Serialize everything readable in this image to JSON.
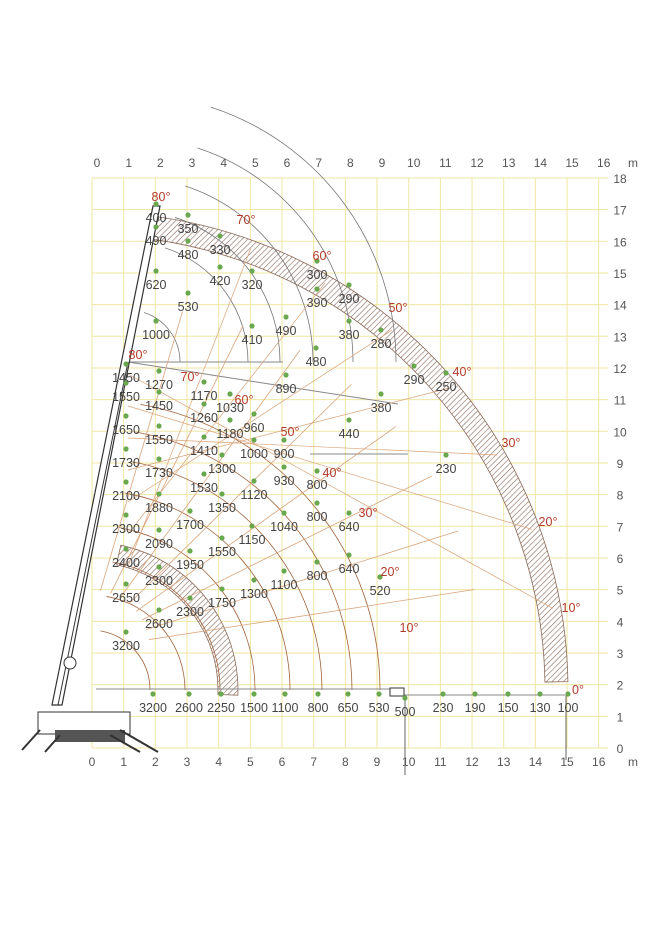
{
  "unit": "m",
  "x_axis_ticks": [
    "0",
    "1",
    "2",
    "3",
    "4",
    "5",
    "6",
    "7",
    "8",
    "9",
    "10",
    "11",
    "12",
    "13",
    "14",
    "15",
    "16"
  ],
  "y_axis_ticks": [
    "0",
    "1",
    "2",
    "3",
    "4",
    "5",
    "6",
    "7",
    "8",
    "9",
    "10",
    "11",
    "12",
    "13",
    "14",
    "15",
    "16",
    "17",
    "18"
  ],
  "colors": {
    "grid": "#efe7a3",
    "angle_text": "#b23a2a",
    "point": "#6aa84f",
    "arc_upper": "#777777",
    "arc_lower": "#a0623a",
    "hatch": "#8a6a5a"
  },
  "upper_angles": [
    "80°",
    "70°",
    "60°",
    "50°",
    "40°",
    "30°",
    "20°",
    "10°",
    "0°"
  ],
  "lower_angles": [
    "80°",
    "70°",
    "60°",
    "50°",
    "40°",
    "30°",
    "20°",
    "10°"
  ],
  "upper_loads": [
    "400",
    "350",
    "330",
    "490",
    "480",
    "420",
    "320",
    "620",
    "530",
    "410",
    "1000",
    "490",
    "480",
    "890",
    "300",
    "390",
    "290",
    "380",
    "280",
    "290",
    "250",
    "380",
    "440",
    "230"
  ],
  "lower_loads": [
    "1450",
    "1270",
    "1170",
    "1030",
    "1550",
    "1450",
    "1260",
    "960",
    "1180",
    "1650",
    "1550",
    "1410",
    "1000",
    "900",
    "1730",
    "1730",
    "1300",
    "930",
    "800",
    "1530",
    "1120",
    "2100",
    "1880",
    "1350",
    "800",
    "640",
    "1700",
    "1040",
    "2300",
    "2090",
    "1150",
    "1550",
    "1950",
    "2400",
    "800",
    "640",
    "2300",
    "1300",
    "1100",
    "520",
    "1750",
    "2300",
    "2650",
    "2600",
    "3200"
  ],
  "ground_loads": [
    "3200",
    "2600",
    "2250",
    "1500",
    "1100",
    "800",
    "650",
    "530",
    "500",
    "230",
    "190",
    "150",
    "130",
    "100"
  ]
}
